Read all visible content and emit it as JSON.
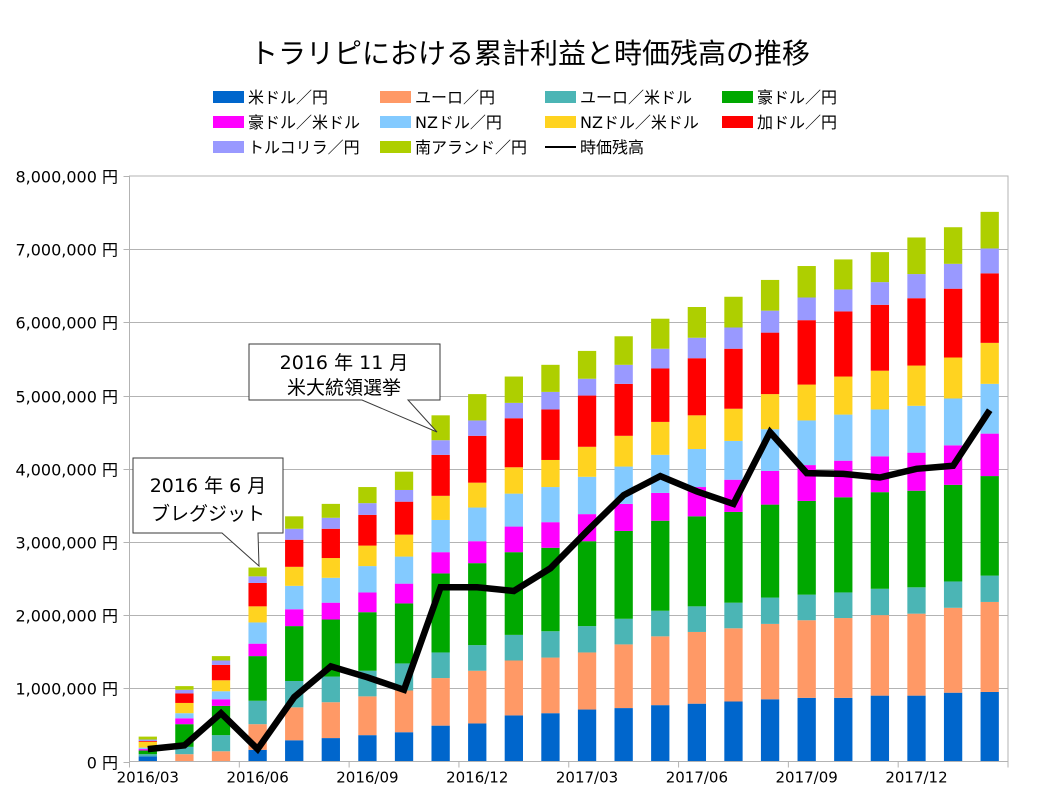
{
  "chart_data": {
    "type": "bar",
    "stacked": true,
    "title": "トラリピにおける累計利益と時価残高の推移",
    "xlabel": "",
    "ylabel": "",
    "ylim": [
      0,
      8000000
    ],
    "y_ticks": [
      0,
      1000000,
      2000000,
      3000000,
      4000000,
      5000000,
      6000000,
      7000000,
      8000000
    ],
    "y_tick_labels": [
      "0 円",
      "1,000,000 円",
      "2,000,000 円",
      "3,000,000 円",
      "4,000,000 円",
      "5,000,000 円",
      "6,000,000 円",
      "7,000,000 円",
      "8,000,000 円"
    ],
    "grid": true,
    "legend_position": "top",
    "categories": [
      "2016/03",
      "2016/04",
      "2016/05",
      "2016/06",
      "2016/07",
      "2016/08",
      "2016/09",
      "2016/10",
      "2016/11",
      "2016/12",
      "2017/01",
      "2017/02",
      "2017/03",
      "2017/04",
      "2017/05",
      "2017/06",
      "2017/07",
      "2017/08",
      "2017/09",
      "2017/10",
      "2017/11",
      "2017/12",
      "2018/01",
      "2018/02"
    ],
    "x_tick_labels": [
      "2016/03",
      "2016/06",
      "2016/09",
      "2016/12",
      "2017/03",
      "2017/06",
      "2017/09",
      "2017/12"
    ],
    "series": [
      {
        "name": "米ドル／円",
        "type": "bar",
        "color": "#0066cc",
        "values": [
          70000,
          0,
          0,
          160000,
          290000,
          320000,
          360000,
          400000,
          490000,
          520000,
          630000,
          660000,
          710000,
          730000,
          770000,
          790000,
          820000,
          850000,
          870000,
          870000,
          900000,
          900000,
          940000,
          950000
        ]
      },
      {
        "name": "ユーロ／円",
        "type": "bar",
        "color": "#ff9966",
        "values": [
          0,
          100000,
          140000,
          350000,
          450000,
          490000,
          530000,
          570000,
          650000,
          720000,
          750000,
          760000,
          780000,
          870000,
          940000,
          980000,
          1000000,
          1030000,
          1060000,
          1090000,
          1100000,
          1120000,
          1160000,
          1230000
        ]
      },
      {
        "name": "ユーロ／米ドル",
        "type": "bar",
        "color": "#4bb5b5",
        "values": [
          30000,
          100000,
          220000,
          320000,
          360000,
          350000,
          350000,
          370000,
          350000,
          350000,
          350000,
          360000,
          360000,
          350000,
          350000,
          350000,
          350000,
          360000,
          350000,
          350000,
          360000,
          360000,
          360000,
          360000
        ]
      },
      {
        "name": "豪ドル／円",
        "type": "bar",
        "color": "#00a800",
        "values": [
          50000,
          310000,
          400000,
          610000,
          750000,
          780000,
          800000,
          820000,
          1080000,
          1120000,
          1130000,
          1140000,
          1160000,
          1200000,
          1230000,
          1230000,
          1240000,
          1270000,
          1280000,
          1300000,
          1320000,
          1320000,
          1320000,
          1360000
        ]
      },
      {
        "name": "豪ドル／米ドル",
        "type": "bar",
        "color": "#ff00ff",
        "values": [
          20000,
          80000,
          90000,
          170000,
          230000,
          230000,
          270000,
          270000,
          290000,
          300000,
          350000,
          350000,
          370000,
          370000,
          380000,
          400000,
          440000,
          460000,
          490000,
          500000,
          490000,
          520000,
          540000,
          580000
        ]
      },
      {
        "name": "NZドル／円",
        "type": "bar",
        "color": "#83caff",
        "values": [
          20000,
          70000,
          110000,
          290000,
          320000,
          340000,
          360000,
          370000,
          440000,
          460000,
          450000,
          480000,
          510000,
          510000,
          520000,
          520000,
          530000,
          570000,
          610000,
          630000,
          640000,
          640000,
          640000,
          680000
        ]
      },
      {
        "name": "NZドル／米ドル",
        "type": "bar",
        "color": "#ffd320",
        "values": [
          80000,
          140000,
          150000,
          220000,
          260000,
          270000,
          280000,
          300000,
          330000,
          340000,
          360000,
          370000,
          410000,
          420000,
          450000,
          460000,
          440000,
          480000,
          490000,
          520000,
          530000,
          550000,
          560000,
          560000
        ]
      },
      {
        "name": "加ドル／円",
        "type": "bar",
        "color": "#ff0000",
        "values": [
          10000,
          130000,
          210000,
          320000,
          370000,
          400000,
          420000,
          450000,
          560000,
          640000,
          670000,
          690000,
          700000,
          710000,
          730000,
          780000,
          820000,
          840000,
          880000,
          890000,
          900000,
          920000,
          940000,
          950000
        ]
      },
      {
        "name": "トルコリラ／円",
        "type": "bar",
        "color": "#9999ff",
        "values": [
          20000,
          50000,
          60000,
          90000,
          150000,
          150000,
          160000,
          160000,
          200000,
          210000,
          210000,
          240000,
          230000,
          260000,
          270000,
          280000,
          290000,
          300000,
          310000,
          300000,
          310000,
          330000,
          340000,
          340000
        ]
      },
      {
        "name": "南アランド／円",
        "type": "bar",
        "color": "#aecf00",
        "values": [
          40000,
          50000,
          60000,
          120000,
          170000,
          190000,
          220000,
          250000,
          340000,
          360000,
          360000,
          370000,
          380000,
          390000,
          410000,
          420000,
          420000,
          420000,
          430000,
          410000,
          410000,
          500000,
          500000,
          500000
        ]
      },
      {
        "name": "時価残高",
        "type": "line",
        "color": "#000000",
        "values": [
          170000,
          220000,
          660000,
          170000,
          880000,
          1300000,
          1150000,
          980000,
          2380000,
          2380000,
          2330000,
          2640000,
          3150000,
          3640000,
          3900000,
          3690000,
          3520000,
          4500000,
          3940000,
          3930000,
          3880000,
          4000000,
          4040000,
          4800000
        ]
      }
    ],
    "annotations": [
      {
        "line1": "2016 年 6 月",
        "line2": "ブレグジット",
        "category": "2016/06"
      },
      {
        "line1": "2016 年 11 月",
        "line2": "米大統領選挙",
        "category": "2016/11"
      }
    ]
  }
}
